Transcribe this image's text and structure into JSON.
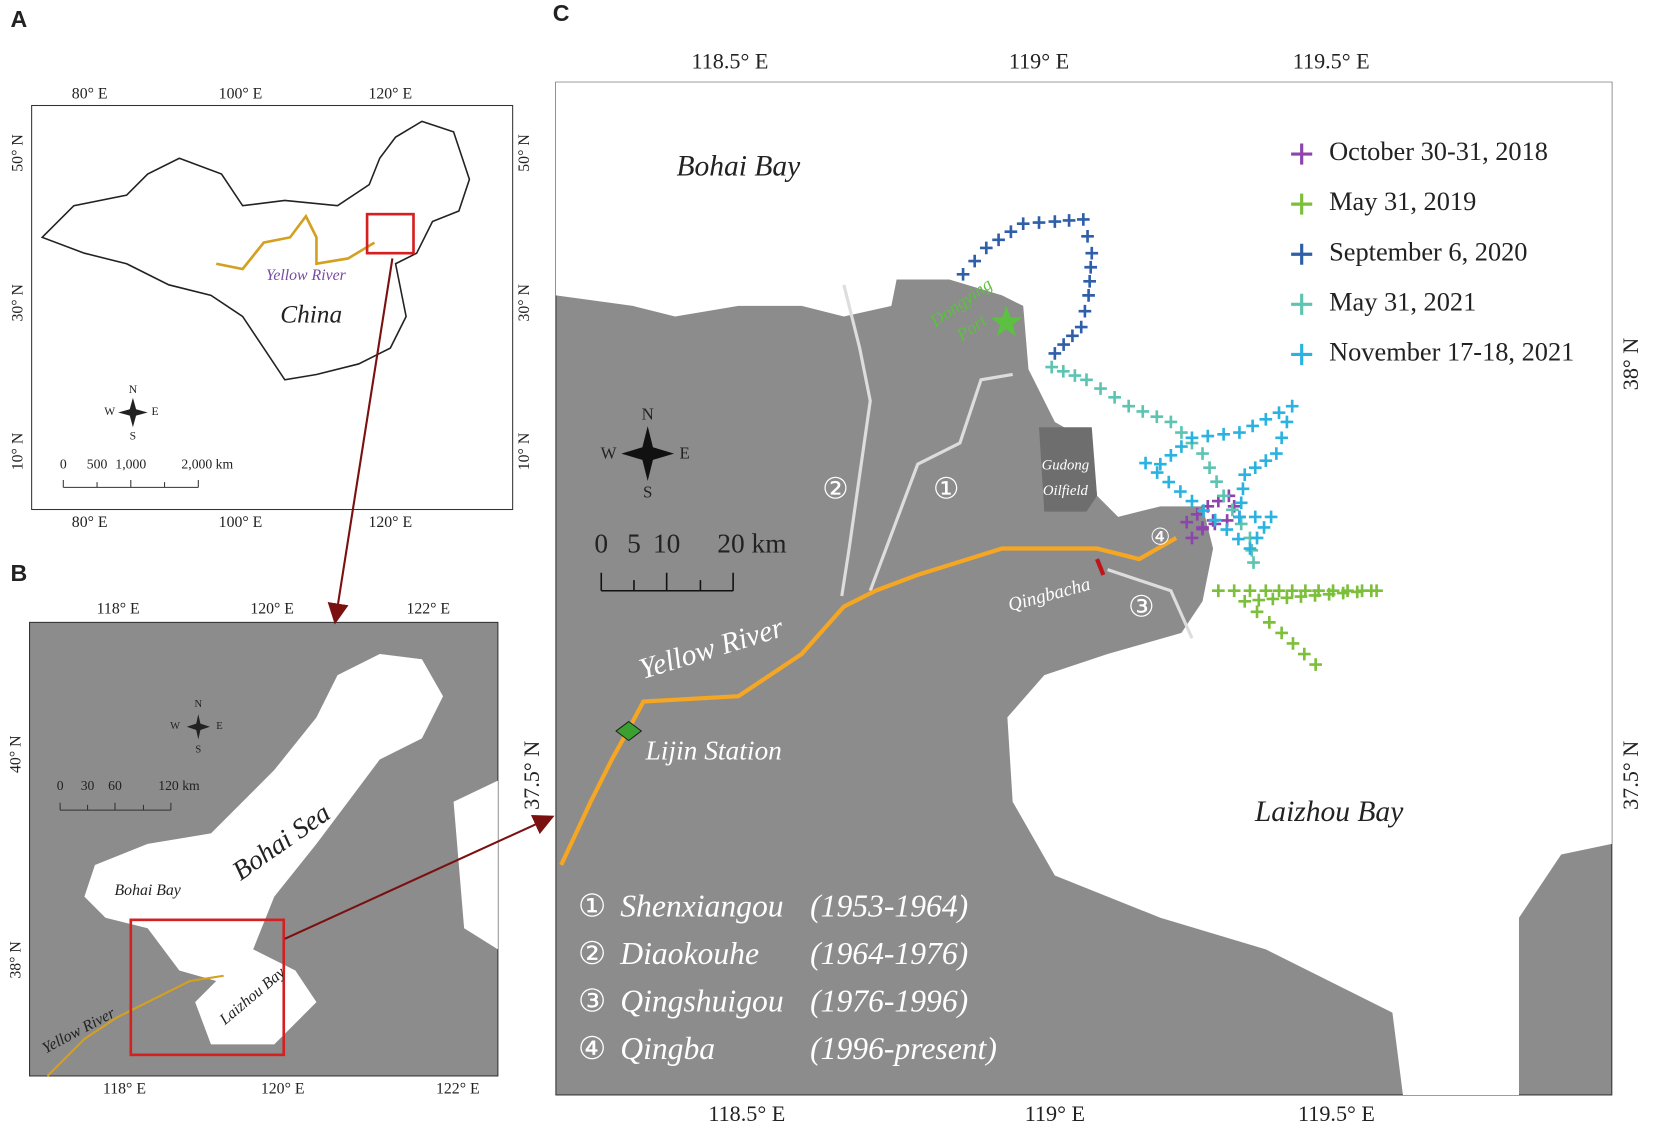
{
  "panel_a": {
    "label": "A",
    "top_ticks": [
      "80° E",
      "100° E",
      "120° E"
    ],
    "bottom_ticks": [
      "80° E",
      "100° E",
      "120° E"
    ],
    "left_ticks": [
      "50° N",
      "30° N",
      "10° N"
    ],
    "right_ticks": [
      "50° N",
      "30° N",
      "10° N"
    ],
    "river": "Yellow River",
    "country": "China",
    "compass": {
      "n": "N",
      "e": "E",
      "s": "S",
      "w": "W"
    },
    "scale": [
      "0",
      "500",
      "1,000",
      "2,000 km"
    ]
  },
  "panel_b": {
    "label": "B",
    "top_ticks": [
      "118° E",
      "120° E",
      "122° E"
    ],
    "bottom_ticks": [
      "118° E",
      "120° E",
      "122° E"
    ],
    "left_ticks": [
      "40° N",
      "38° N"
    ],
    "sea": "Bohai Sea",
    "bay1": "Bohai Bay",
    "bay2": "Laizhou Bay",
    "river": "Yellow River",
    "compass": {
      "n": "N",
      "e": "E",
      "s": "S",
      "w": "W"
    },
    "scale": [
      "0",
      "30",
      "60",
      "120 km"
    ]
  },
  "panel_c": {
    "label": "C",
    "top_ticks": [
      "118.5° E",
      "119° E",
      "119.5° E"
    ],
    "bottom_ticks": [
      "118.5° E",
      "119° E",
      "119.5° E"
    ],
    "left_ticks": [
      "37.5° N"
    ],
    "right_ticks": [
      "38° N",
      "37.5° N"
    ],
    "bay1": "Bohai Bay",
    "bay2": "Laizhou Bay",
    "river": "Yellow River",
    "station": "Lijin Station",
    "qingbacha": "Qingbacha",
    "oilfield": [
      "Gudong",
      "Oilfield"
    ],
    "port": [
      "Dongying",
      "Port"
    ],
    "map_numbers": [
      "①",
      "②",
      "③",
      "④"
    ],
    "compass": {
      "n": "N",
      "e": "E",
      "s": "S",
      "w": "W"
    },
    "scale": [
      "0",
      "5",
      "10",
      "20 km"
    ],
    "legend": [
      {
        "label": "October 30-31, 2018",
        "color": "#8e44ad"
      },
      {
        "label": "May 31, 2019",
        "color": "#7cbf3a"
      },
      {
        "label": "September 6, 2020",
        "color": "#2e5fa8"
      },
      {
        "label": "May 31, 2021",
        "color": "#5cc4b0"
      },
      {
        "label": "November 17-18, 2021",
        "color": "#2ab3e0"
      }
    ],
    "channels": [
      {
        "num": "①",
        "name": "Shenxiangou",
        "years": "(1953-1964)"
      },
      {
        "num": "②",
        "name": "Diaokouhe",
        "years": "(1964-1976)"
      },
      {
        "num": "③",
        "name": "Qingshuigou",
        "years": "(1976-1996)"
      },
      {
        "num": "④",
        "name": "Qingba",
        "years": "(1996-present)"
      }
    ]
  }
}
